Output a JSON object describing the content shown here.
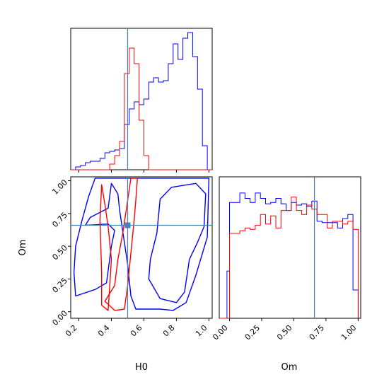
{
  "chart_data": {
    "type": "corner",
    "parameters": [
      "H0",
      "Om"
    ],
    "truth": {
      "H0": 0.5,
      "Om": 0.66
    },
    "truth_color": "#4682b4",
    "series": [
      {
        "color": "#0000ff"
      },
      {
        "color": "#ff0000"
      }
    ],
    "panels": [
      {
        "panel": "H0-marginal",
        "xlim": [
          0.15,
          1.02
        ],
        "ylim": [
          0,
          1
        ],
        "bin_edges": [
          0.15,
          0.18,
          0.21,
          0.24,
          0.27,
          0.3,
          0.33,
          0.36,
          0.39,
          0.42,
          0.45,
          0.48,
          0.51,
          0.54,
          0.57,
          0.6,
          0.63,
          0.66,
          0.69,
          0.72,
          0.75,
          0.78,
          0.81,
          0.84,
          0.87,
          0.9,
          0.93,
          0.96,
          0.99,
          1.02
        ],
        "series_values": [
          [
            0.0,
            0.02,
            0.03,
            0.05,
            0.06,
            0.06,
            0.08,
            0.12,
            0.13,
            0.14,
            0.15,
            0.32,
            0.43,
            0.48,
            0.46,
            0.5,
            0.62,
            0.65,
            0.62,
            0.63,
            0.75,
            0.89,
            0.78,
            0.93,
            0.97,
            0.8,
            0.57,
            0.17,
            0.0
          ],
          [
            0.0,
            0.0,
            0.0,
            0.0,
            0.0,
            0.0,
            0.0,
            0.0,
            0.04,
            0.1,
            0.2,
            0.68,
            0.86,
            0.75,
            0.35,
            0.1,
            0.0,
            0.0,
            0.0,
            0.0,
            0.0,
            0.0,
            0.0,
            0.0,
            0.0,
            0.0,
            0.0,
            0.0,
            0.0
          ]
        ],
        "ticks": [
          0.2,
          0.4,
          0.6,
          0.8,
          1.0
        ]
      },
      {
        "panel": "Om-marginal",
        "xlim": [
          -0.08,
          1.02
        ],
        "ylim": [
          0,
          1.05
        ],
        "bin_edges": [
          -0.08,
          -0.02,
          0.0,
          0.04,
          0.08,
          0.12,
          0.16,
          0.2,
          0.24,
          0.28,
          0.32,
          0.36,
          0.4,
          0.44,
          0.48,
          0.52,
          0.56,
          0.6,
          0.64,
          0.68,
          0.72,
          0.76,
          0.8,
          0.84,
          0.88,
          0.92,
          0.96,
          1.0
        ],
        "series_values": [
          [
            0.0,
            0.35,
            0.86,
            0.86,
            0.93,
            0.89,
            0.86,
            0.93,
            0.89,
            0.85,
            0.86,
            0.89,
            0.85,
            0.8,
            0.86,
            0.84,
            0.85,
            0.83,
            0.87,
            0.72,
            0.71,
            0.71,
            0.71,
            0.67,
            0.74,
            0.77,
            0.21
          ],
          [
            0.0,
            0.0,
            0.63,
            0.63,
            0.65,
            0.67,
            0.66,
            0.69,
            0.77,
            0.7,
            0.76,
            0.67,
            0.8,
            0.8,
            0.9,
            0.8,
            0.77,
            0.84,
            0.81,
            0.77,
            0.77,
            0.67,
            0.72,
            0.72,
            0.7,
            0.72,
            0.66
          ]
        ],
        "ticks": [
          "0.00",
          "0.25",
          "0.50",
          "0.75",
          "1.00"
        ],
        "xlabel": "Om"
      },
      {
        "panel": "H0-Om-joint",
        "xlim": [
          0.15,
          1.02
        ],
        "ylim": [
          -0.05,
          1.03
        ],
        "xticks": [
          "0.2",
          "0.4",
          "0.6",
          "0.8",
          "1.0"
        ],
        "yticks": [
          "0.00",
          "0.25",
          "0.50",
          "0.75",
          "1.00"
        ],
        "xlabel": "H0",
        "ylabel": "Om",
        "contours": [
          {
            "series": 0,
            "points": [
              [
                0.18,
                0.12
              ],
              [
                0.3,
                0.17
              ],
              [
                0.37,
                0.22
              ],
              [
                0.4,
                0.5
              ],
              [
                0.42,
                0.62
              ],
              [
                0.38,
                0.67
              ],
              [
                0.24,
                0.66
              ],
              [
                0.27,
                0.72
              ],
              [
                0.38,
                0.79
              ],
              [
                0.4,
                0.98
              ],
              [
                0.44,
                0.9
              ],
              [
                0.45,
                0.78
              ],
              [
                0.5,
                0.36
              ],
              [
                0.52,
                0.12
              ],
              [
                0.55,
                0.02
              ],
              [
                0.7,
                0.02
              ],
              [
                0.78,
                0.01
              ],
              [
                0.86,
                0.07
              ],
              [
                0.92,
                0.28
              ],
              [
                0.99,
                0.57
              ],
              [
                1.0,
                1.02
              ],
              [
                0.3,
                1.02
              ],
              [
                0.26,
                0.88
              ],
              [
                0.22,
                0.7
              ],
              [
                0.18,
                0.5
              ],
              [
                0.17,
                0.3
              ]
            ]
          },
          {
            "series": 0,
            "points": [
              [
                0.63,
                0.25
              ],
              [
                0.7,
                0.1
              ],
              [
                0.8,
                0.07
              ],
              [
                0.85,
                0.15
              ],
              [
                0.88,
                0.4
              ],
              [
                0.93,
                0.53
              ],
              [
                0.97,
                0.65
              ],
              [
                0.98,
                0.9
              ],
              [
                0.92,
                0.98
              ],
              [
                0.77,
                0.95
              ],
              [
                0.7,
                0.86
              ],
              [
                0.68,
                0.6
              ],
              [
                0.64,
                0.4
              ]
            ]
          },
          {
            "series": 1,
            "points": [
              [
                0.36,
                0.08
              ],
              [
                0.42,
                0.01
              ],
              [
                0.48,
                0.02
              ],
              [
                0.5,
                0.2
              ],
              [
                0.52,
                0.45
              ],
              [
                0.54,
                0.7
              ],
              [
                0.55,
                0.85
              ],
              [
                0.56,
                1.02
              ],
              [
                0.52,
                1.02
              ],
              [
                0.5,
                0.85
              ],
              [
                0.47,
                0.6
              ],
              [
                0.44,
                0.4
              ],
              [
                0.42,
                0.2
              ]
            ]
          },
          {
            "series": 1,
            "points": [
              [
                0.34,
                0.05
              ],
              [
                0.38,
                0.01
              ],
              [
                0.4,
                0.4
              ],
              [
                0.38,
                0.65
              ],
              [
                0.36,
                0.82
              ],
              [
                0.34,
                0.97
              ],
              [
                0.33,
                0.7
              ],
              [
                0.34,
                0.3
              ]
            ]
          }
        ]
      }
    ]
  }
}
